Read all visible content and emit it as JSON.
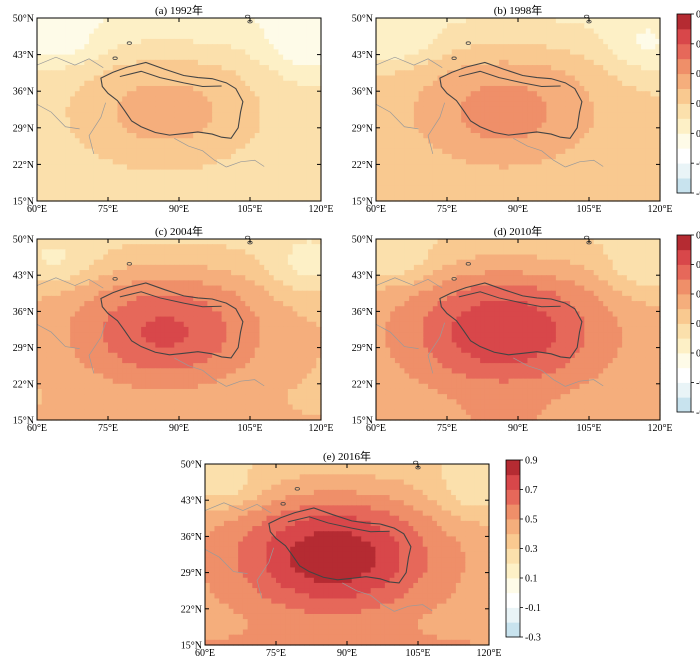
{
  "panels": [
    {
      "id": "a",
      "title": "(a) 1992年",
      "peak": 0.45,
      "base": 0.22,
      "south": 0.24,
      "colorbar": false
    },
    {
      "id": "b",
      "title": "(b) 1998年",
      "peak": 0.55,
      "base": 0.3,
      "south": 0.32,
      "colorbar": true
    },
    {
      "id": "c",
      "title": "(c) 2004年",
      "peak": 0.72,
      "base": 0.38,
      "south": 0.4,
      "colorbar": false
    },
    {
      "id": "d",
      "title": "(d) 2010年",
      "peak": 0.8,
      "base": 0.42,
      "south": 0.47,
      "colorbar": true
    },
    {
      "id": "e",
      "title": "(e) 2016年",
      "peak": 0.88,
      "base": 0.44,
      "south": 0.5,
      "colorbar": true
    }
  ],
  "axes": {
    "lon_min": 60,
    "lon_max": 120,
    "lat_min": 15,
    "lat_max": 50,
    "x_ticks": [
      "60°E",
      "75°E",
      "90°E",
      "105°E",
      "120°E"
    ],
    "y_ticks": [
      "15°N",
      "22°N",
      "29°N",
      "36°N",
      "43°N",
      "50°N"
    ]
  },
  "colorbar": {
    "ticks": [
      "0.9",
      "0.7",
      "0.5",
      "0.3",
      "0.1",
      "-0.1",
      "-0.3"
    ],
    "levels": [
      -0.3,
      -0.2,
      -0.1,
      0.0,
      0.1,
      0.2,
      0.3,
      0.4,
      0.5,
      0.6,
      0.7,
      0.8,
      0.9
    ],
    "colors": [
      "#c8e3ee",
      "#e9f4f7",
      "#ffffff",
      "#fefbe8",
      "#fdf0c6",
      "#fbe0ac",
      "#f9c990",
      "#f5ae7c",
      "#ef8f69",
      "#e6685a",
      "#d8474a",
      "#b52b32"
    ]
  },
  "colors": {
    "boundary": "#444444",
    "border": "#9a9a9a",
    "frame": "#000000"
  }
}
